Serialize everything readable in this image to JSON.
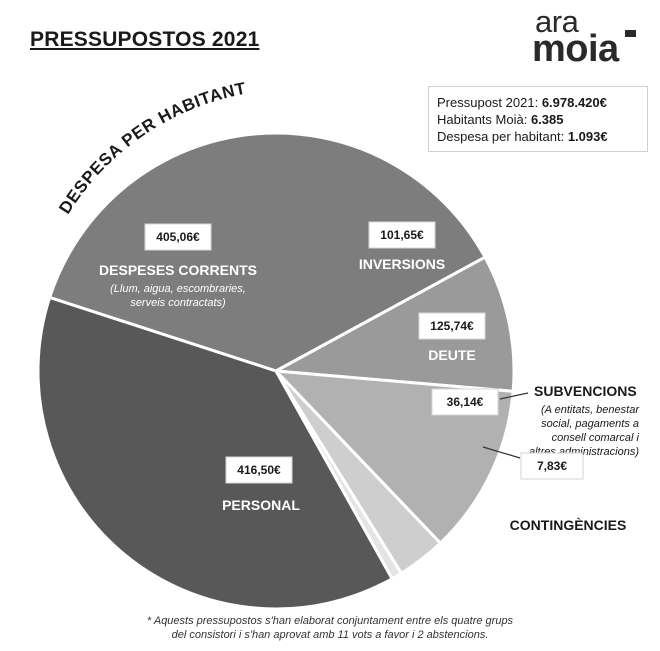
{
  "page": {
    "title": "PRESSUPOSTOS 2021",
    "logo": {
      "line1": "ara",
      "line2": "moia"
    },
    "info": {
      "rows": [
        {
          "label": "Pressupost 2021:",
          "value": "6.978.420€"
        },
        {
          "label": "Habitants Moià:",
          "value": "6.385"
        },
        {
          "label": "Despesa per habitant:",
          "value": "1.093€"
        }
      ]
    },
    "arc_caption": "DESPESA PER HABITANT",
    "footnote": {
      "line1": "* Aquests pressupostos s'han elaborat conjuntament entre els quatre grups",
      "line2": "del consistori i s'han aprovat amb 11 vots a favor i 2 abstencions."
    }
  },
  "chart_data": {
    "type": "pie",
    "title": "DESPESA PER HABITANT",
    "unit": "€",
    "slices": [
      {
        "name": "DESPESES CORRENTS",
        "value": 405.06,
        "value_label": "405,06€",
        "description": "(Llum, aigua, escombraries, serveis contractats)",
        "description_lines": [
          "(Llum, aigua, escombraries,",
          "serveis contractats)"
        ],
        "color": "#7d7d7d"
      },
      {
        "name": "INVERSIONS",
        "value": 101.65,
        "value_label": "101,65€",
        "description": "",
        "color": "#9a9a9a"
      },
      {
        "name": "DEUTE",
        "value": 125.74,
        "value_label": "125,74€",
        "description": "",
        "color": "#b1b1b1"
      },
      {
        "name": "SUBVENCIONS",
        "value": 36.14,
        "value_label": "36,14€",
        "description": "(A entitats, benestar social, pagaments a consell comarcal i altres administracions)",
        "description_lines": [
          "(A entitats, benestar",
          "social, pagaments a",
          "consell comarcal i",
          "altres administracions)"
        ],
        "color": "#cecece"
      },
      {
        "name": "CONTINGÈNCIES",
        "value": 7.83,
        "value_label": "7,83€",
        "description": "",
        "color": "#e4e4e4"
      },
      {
        "name": "PERSONAL",
        "value": 416.5,
        "value_label": "416,50€",
        "description": "",
        "color": "#585858"
      }
    ]
  }
}
